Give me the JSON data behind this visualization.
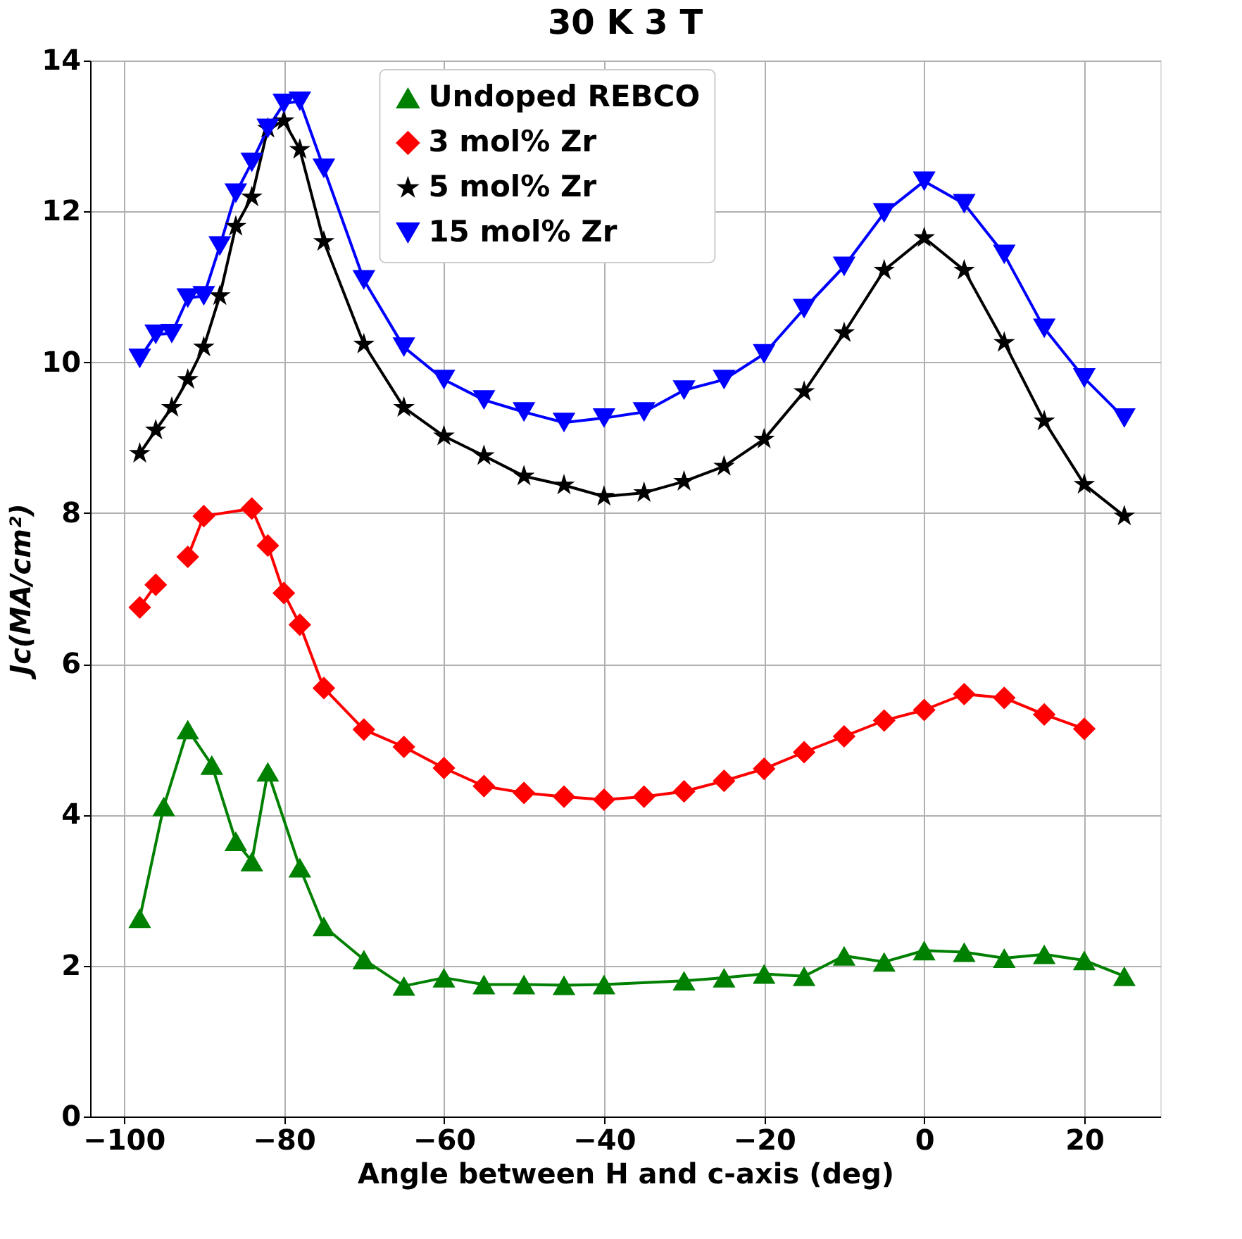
{
  "chart_data": {
    "type": "line",
    "title": "30 K 3 T",
    "xlabel": "Angle between H and c-axis (deg)",
    "ylabel": "Jc(MA/cm²)",
    "xlim": [
      -104.2,
      29.5
    ],
    "xticks": [
      -100,
      -80,
      -60,
      -40,
      -20,
      0,
      20
    ],
    "ylim": [
      0,
      14
    ],
    "yticks": [
      0,
      2,
      4,
      6,
      8,
      10,
      12,
      14
    ],
    "grid": true,
    "legend": "top",
    "line_style": "solid",
    "series": [
      {
        "name": "Undoped REBCO",
        "color": "#008000",
        "marker": "triangle",
        "x": [
          -98,
          -95,
          -92,
          -89,
          -86,
          -84,
          -82,
          -78,
          -75,
          -70,
          -65,
          -60,
          -55,
          -50,
          -45,
          -40,
          -30,
          -25,
          -20,
          -15,
          -10,
          -5,
          0,
          5,
          10,
          15,
          20,
          25
        ],
        "values": [
          2.63,
          4.11,
          5.13,
          4.66,
          3.65,
          3.38,
          4.57,
          3.3,
          2.52,
          2.08,
          1.73,
          1.84,
          1.75,
          1.75,
          1.74,
          1.75,
          1.8,
          1.84,
          1.89,
          1.86,
          2.13,
          2.05,
          2.2,
          2.18,
          2.1,
          2.15,
          2.07,
          1.86
        ]
      },
      {
        "name": "3 mol% Zr",
        "color": "#ff0000",
        "marker": "diamond",
        "x": [
          -98,
          -96,
          -94,
          -92,
          -90,
          -84,
          -82,
          -80,
          -78,
          -75,
          -70,
          -65,
          -60,
          -55,
          -50,
          -45,
          -40,
          -35,
          -30,
          -25,
          -20,
          -15,
          -10,
          -5,
          0,
          5,
          10,
          15,
          20
        ],
        "values": [
          6.75,
          7.05,
          null,
          7.42,
          7.96,
          8.06,
          7.57,
          6.94,
          6.52,
          5.68,
          5.13,
          4.9,
          4.62,
          4.38,
          4.29,
          4.24,
          4.2,
          4.24,
          4.31,
          4.45,
          4.61,
          4.83,
          5.04,
          5.25,
          5.39,
          5.6,
          5.55,
          5.33,
          5.14
        ]
      },
      {
        "name": "5 mol% Zr",
        "color": "#000000",
        "marker": "star",
        "x": [
          -98,
          -96,
          -94,
          -92,
          -90,
          -88,
          -86,
          -84,
          -82,
          -80,
          -78,
          -75,
          -70,
          -65,
          -60,
          -55,
          -50,
          -45,
          -40,
          -35,
          -30,
          -25,
          -20,
          -15,
          -10,
          -5,
          0,
          5,
          10,
          15,
          20,
          25
        ],
        "values": [
          8.79,
          9.1,
          9.4,
          9.77,
          10.2,
          10.88,
          11.8,
          12.19,
          13.1,
          13.2,
          12.82,
          11.6,
          10.24,
          9.4,
          9.02,
          8.76,
          8.49,
          8.37,
          8.22,
          8.27,
          8.42,
          8.62,
          8.98,
          9.61,
          10.39,
          11.22,
          11.65,
          11.22,
          10.26,
          9.22,
          8.38,
          7.96
        ]
      },
      {
        "name": "15 mol% Zr",
        "color": "#0000ff",
        "marker": "triangle-down",
        "x": [
          -98,
          -96,
          -94,
          -92,
          -90,
          -88,
          -86,
          -84,
          -82,
          -80,
          -78,
          -75,
          -70,
          -65,
          -60,
          -55,
          -50,
          -45,
          -40,
          -35,
          -30,
          -25,
          -20,
          -15,
          -10,
          -5,
          0,
          5,
          10,
          15,
          20,
          25
        ],
        "values": [
          10.05,
          10.37,
          10.38,
          10.85,
          10.88,
          11.54,
          12.24,
          12.65,
          13.1,
          13.43,
          13.46,
          12.57,
          11.09,
          10.2,
          9.77,
          9.5,
          9.34,
          9.2,
          9.26,
          9.34,
          9.63,
          9.77,
          10.11,
          10.71,
          11.27,
          11.98,
          12.4,
          12.1,
          11.43,
          10.45,
          9.79,
          9.26
        ]
      }
    ]
  }
}
